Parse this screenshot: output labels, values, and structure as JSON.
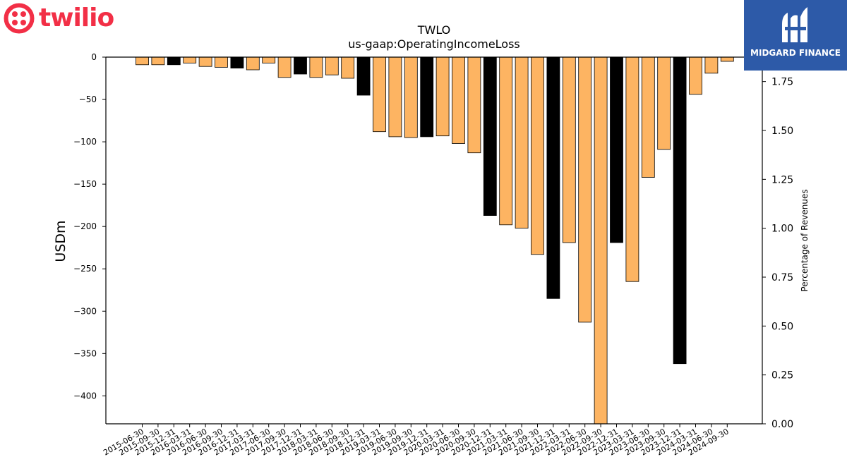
{
  "brand": {
    "left_logo_text": "twilio",
    "right_logo_text": "MIDGARD FINANCE",
    "twilio_color": "#f22f46",
    "midgard_color": "#2d5aa8"
  },
  "chart_data": {
    "type": "bar",
    "title": "TWLO",
    "subtitle": "us-gaap:OperatingIncomeLoss",
    "ylabel": "USDm",
    "y2label": "Percentage of Revenues",
    "ylim": [
      -433,
      0
    ],
    "y_ticks": [
      0,
      -50,
      -100,
      -150,
      -200,
      -250,
      -300,
      -350,
      -400
    ],
    "y2lim": [
      0,
      1.875
    ],
    "y2_ticks": [
      "0.00",
      "0.25",
      "0.50",
      "0.75",
      "1.00",
      "1.25",
      "1.50",
      "1.75"
    ],
    "bar_color_default": "#fdb462",
    "bar_color_highlight": "#000000",
    "categories": [
      "2015-06-30",
      "2015-09-30",
      "2015-12-31",
      "2016-03-31",
      "2016-06-30",
      "2016-09-30",
      "2016-12-31",
      "2017-03-31",
      "2017-06-30",
      "2017-09-30",
      "2017-12-31",
      "2018-03-31",
      "2018-06-30",
      "2018-09-30",
      "2018-12-31",
      "2019-03-31",
      "2019-06-30",
      "2019-09-30",
      "2019-12-31",
      "2020-03-31",
      "2020-06-30",
      "2020-09-30",
      "2020-12-31",
      "2021-03-31",
      "2021-06-30",
      "2021-09-30",
      "2021-12-31",
      "2022-03-31",
      "2022-06-30",
      "2022-09-30",
      "2022-12-31",
      "2023-03-31",
      "2023-06-30",
      "2023-09-30",
      "2023-12-31",
      "2024-03-31",
      "2024-06-30",
      "2024-09-30"
    ],
    "values": [
      -9,
      -9,
      -9,
      -7,
      -11,
      -12,
      -13,
      -15,
      -7,
      -24,
      -20,
      -24,
      -21,
      -25,
      -45,
      -88,
      -94,
      -95,
      -94,
      -93,
      -102,
      -113,
      -187,
      -198,
      -202,
      -233,
      -285,
      -219,
      -313,
      -433,
      -219,
      -265,
      -142,
      -109,
      -362,
      -44,
      -19,
      -5
    ],
    "highlighted": [
      false,
      false,
      true,
      false,
      false,
      false,
      true,
      false,
      false,
      false,
      true,
      false,
      false,
      false,
      true,
      false,
      false,
      false,
      true,
      false,
      false,
      false,
      true,
      false,
      false,
      false,
      true,
      false,
      false,
      false,
      true,
      false,
      false,
      false,
      true,
      false,
      false,
      false
    ]
  }
}
